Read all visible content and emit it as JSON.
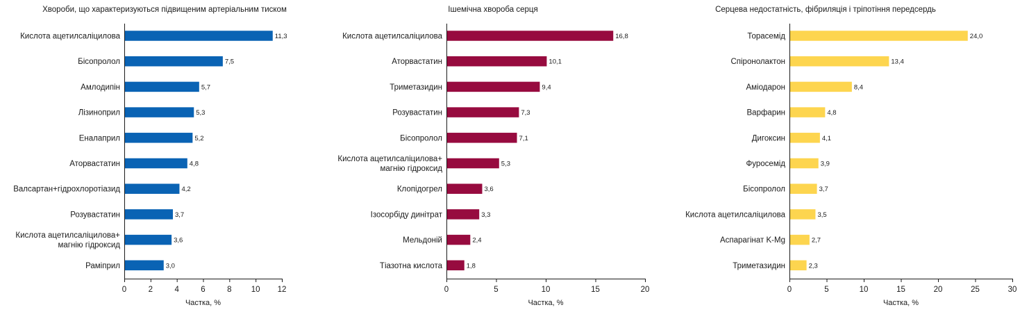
{
  "chart_data": [
    {
      "type": "bar",
      "orientation": "horizontal",
      "title": "Хвороби, що характеризуються підвищеним артеріальним тиском",
      "xlabel": "Частка, %",
      "ylabel": "",
      "xlim": [
        0,
        12
      ],
      "xticks": [
        "0",
        "2",
        "4",
        "6",
        "8",
        "10",
        "12"
      ],
      "color": "#0a63b4",
      "categories": [
        [
          "Кислота ацетилсаліцилова"
        ],
        [
          "Бісопролол"
        ],
        [
          "Амлодипін"
        ],
        [
          "Лізиноприл"
        ],
        [
          "Еналаприл"
        ],
        [
          "Аторвастатин"
        ],
        [
          "Валсартан+гідрохлоротіазид"
        ],
        [
          "Розувастатин"
        ],
        [
          "Кислота ацетилсаліцилова+",
          "магнію гідроксид"
        ],
        [
          "Раміприл"
        ]
      ],
      "values": [
        11.3,
        7.5,
        5.7,
        5.3,
        5.2,
        4.8,
        4.2,
        3.7,
        3.6,
        3.0
      ],
      "value_labels": [
        "11,3",
        "7,5",
        "5,7",
        "5,3",
        "5,2",
        "4,8",
        "4,2",
        "3,7",
        "3,6",
        "3,0"
      ],
      "grid": false
    },
    {
      "type": "bar",
      "orientation": "horizontal",
      "title": "Ішемічна хвороба серця",
      "xlabel": "Частка, %",
      "ylabel": "",
      "xlim": [
        0,
        20
      ],
      "xticks": [
        "0",
        "5",
        "10",
        "15",
        "20"
      ],
      "color": "#970b3f",
      "categories": [
        [
          "Кислота ацетилсаліцилова"
        ],
        [
          "Аторвастатин"
        ],
        [
          "Триметазидин"
        ],
        [
          "Розувастатин"
        ],
        [
          "Бісопролол"
        ],
        [
          "Кислота ацетилсаліцилова+",
          "магнію гідроксид"
        ],
        [
          "Клопідогрел"
        ],
        [
          "Ізосорбіду динітрат"
        ],
        [
          "Мельдоній"
        ],
        [
          "Тіазотна кислота"
        ]
      ],
      "values": [
        16.8,
        10.1,
        9.4,
        7.3,
        7.1,
        5.3,
        3.6,
        3.3,
        2.4,
        1.8
      ],
      "value_labels": [
        "16,8",
        "10,1",
        "9,4",
        "7,3",
        "7,1",
        "5,3",
        "3,6",
        "3,3",
        "2,4",
        "1,8"
      ],
      "grid": false
    },
    {
      "type": "bar",
      "orientation": "horizontal",
      "title": "Серцева недостатність, фібриляція і тріпотіння передсердь",
      "xlabel": "Частка, %",
      "ylabel": "",
      "xlim": [
        0,
        30
      ],
      "xticks": [
        "0",
        "5",
        "10",
        "15",
        "20",
        "25",
        "30"
      ],
      "color": "#fdd54f",
      "categories": [
        [
          "Торасемід"
        ],
        [
          "Спіронолактон"
        ],
        [
          "Аміодарон"
        ],
        [
          "Варфарин"
        ],
        [
          "Дигоксин"
        ],
        [
          "Фуросемід"
        ],
        [
          "Бісопролол"
        ],
        [
          "Кислота ацетилсаліцилова"
        ],
        [
          "Аспарагінат K-Mg"
        ],
        [
          "Триметазидин"
        ]
      ],
      "values": [
        24.0,
        13.4,
        8.4,
        4.8,
        4.1,
        3.9,
        3.7,
        3.5,
        2.7,
        2.3
      ],
      "value_labels": [
        "24,0",
        "13,4",
        "8,4",
        "4,8",
        "4,1",
        "3,9",
        "3,7",
        "3,5",
        "2,7",
        "2,3"
      ],
      "grid": false
    }
  ]
}
